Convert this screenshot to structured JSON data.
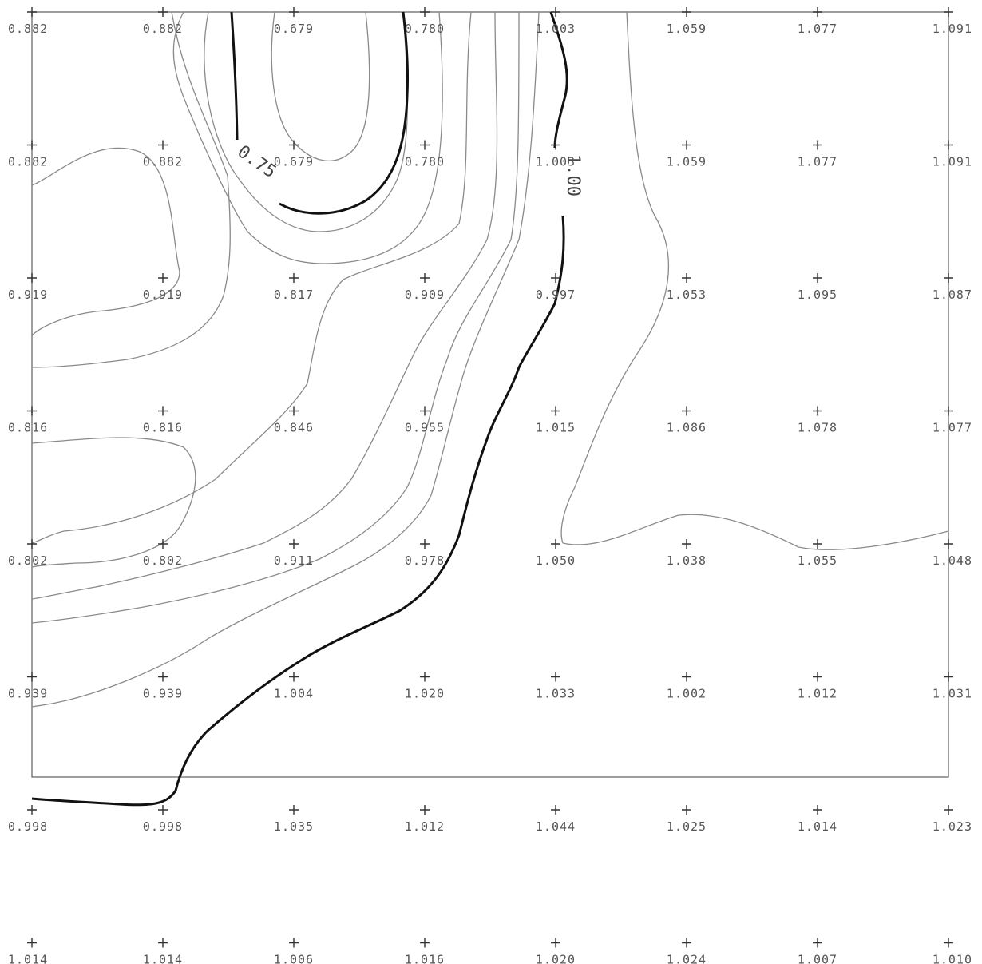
{
  "chart_data": {
    "type": "contour",
    "title": "",
    "xlabel": "",
    "ylabel": "",
    "grid": false,
    "x": [
      0,
      1,
      2,
      3,
      4,
      5,
      6,
      7
    ],
    "y": [
      0,
      1,
      2,
      3,
      4,
      5,
      6,
      7
    ],
    "z": [
      [
        0.882,
        0.882,
        0.679,
        0.78,
        1.003,
        1.059,
        1.077,
        1.091
      ],
      [
        0.882,
        0.882,
        0.679,
        0.78,
        1.003,
        1.059,
        1.077,
        1.091
      ],
      [
        0.919,
        0.919,
        0.817,
        0.909,
        0.997,
        1.053,
        1.095,
        1.087
      ],
      [
        0.816,
        0.816,
        0.846,
        0.955,
        1.015,
        1.086,
        1.078,
        1.077
      ],
      [
        0.802,
        0.802,
        0.911,
        0.978,
        1.05,
        1.038,
        1.055,
        1.048
      ],
      [
        0.939,
        0.939,
        1.004,
        1.02,
        1.033,
        1.002,
        1.012,
        1.031
      ],
      [
        0.998,
        0.998,
        1.035,
        1.012,
        1.044,
        1.025,
        1.014,
        1.023
      ],
      [
        1.014,
        1.014,
        1.006,
        1.016,
        1.02,
        1.024,
        1.007,
        1.01
      ]
    ],
    "value_labels": [
      [
        "0.882",
        "0.882",
        "0.679",
        "0.780",
        "1.003",
        "1.059",
        "1.077",
        "1.091"
      ],
      [
        "0.882",
        "0.882",
        "0.679",
        "0.780",
        "1.003",
        "1.059",
        "1.077",
        "1.091"
      ],
      [
        "0.919",
        "0.919",
        "0.817",
        "0.909",
        "0.997",
        "1.053",
        "1.095",
        "1.087"
      ],
      [
        "0.816",
        "0.816",
        "0.846",
        "0.955",
        "1.015",
        "1.086",
        "1.078",
        "1.077"
      ],
      [
        "0.802",
        "0.802",
        "0.911",
        "0.978",
        "1.050",
        "1.038",
        "1.055",
        "1.048"
      ],
      [
        "0.939",
        "0.939",
        "1.004",
        "1.020",
        "1.033",
        "1.002",
        "1.012",
        "1.031"
      ],
      [
        "0.998",
        "0.998",
        "1.035",
        "1.012",
        "1.044",
        "1.025",
        "1.014",
        "1.023"
      ],
      [
        "1.014",
        "1.014",
        "1.006",
        "1.016",
        "1.020",
        "1.024",
        "1.007",
        "1.010"
      ]
    ],
    "contour_labels": [
      "0.75",
      "1.00"
    ],
    "bold_contour_levels": [
      0.75,
      1.0
    ],
    "colors": {
      "bold_contour": "#111111",
      "thin_contour": "#8a8a8a",
      "marker": "#303030",
      "label": "#555555"
    }
  }
}
